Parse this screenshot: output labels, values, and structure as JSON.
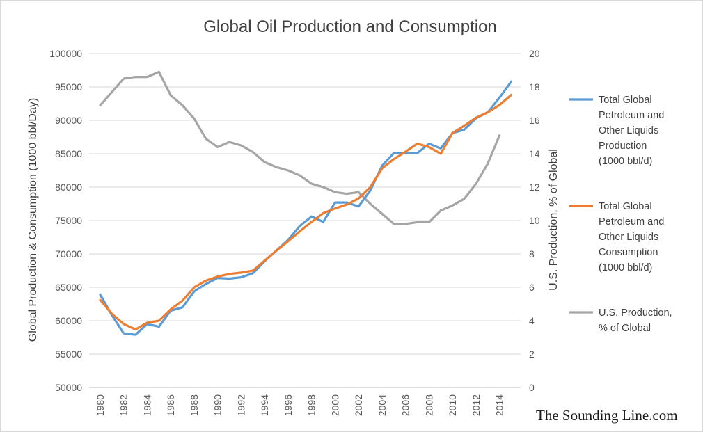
{
  "chart_data": {
    "type": "line",
    "title": "Global Oil Production and Consumption",
    "ylabel": "Global Production & Consumption (1000 bbl/Day)",
    "y2label": "U.S. Production, % of Global",
    "ylim": [
      50000,
      100000
    ],
    "y2lim": [
      0,
      20
    ],
    "yticks": [
      50000,
      55000,
      60000,
      65000,
      70000,
      75000,
      80000,
      85000,
      90000,
      95000,
      100000
    ],
    "y2ticks": [
      0,
      2,
      4,
      6,
      8,
      10,
      12,
      14,
      16,
      18,
      20
    ],
    "x": [
      1980,
      1981,
      1982,
      1983,
      1984,
      1985,
      1986,
      1987,
      1988,
      1989,
      1990,
      1991,
      1992,
      1993,
      1994,
      1995,
      1996,
      1997,
      1998,
      1999,
      2000,
      2001,
      2002,
      2003,
      2004,
      2005,
      2006,
      2007,
      2008,
      2009,
      2010,
      2011,
      2012,
      2013,
      2014,
      2015
    ],
    "xticks": [
      1980,
      1982,
      1984,
      1986,
      1988,
      1990,
      1992,
      1994,
      1996,
      1998,
      2000,
      2002,
      2004,
      2006,
      2008,
      2010,
      2012,
      2014
    ],
    "grid": true,
    "legend_position": "right",
    "series": [
      {
        "name": "Total Global Petroleum and Other Liquids Production (1000 bbl/d)",
        "legend_lines": [
          "Total Global",
          "Petroleum and",
          "Other Liquids",
          "Production",
          "(1000 bbl/d)"
        ],
        "axis": "left",
        "color": "#5b9bd5",
        "values": [
          63900,
          60800,
          58100,
          57900,
          59500,
          59100,
          61500,
          62000,
          64400,
          65500,
          66400,
          66300,
          66500,
          67100,
          68900,
          70500,
          72100,
          74200,
          75600,
          74800,
          77700,
          77700,
          77100,
          79500,
          83200,
          85100,
          85100,
          85100,
          86500,
          85800,
          88100,
          88600,
          90300,
          91200,
          93400,
          95800
        ]
      },
      {
        "name": "Total Global Petroleum and Other Liquids Consumption (1000 bbl/d)",
        "legend_lines": [
          "Total Global",
          "Petroleum and",
          "Other Liquids",
          "Consumption",
          "(1000 bbl/d)"
        ],
        "axis": "left",
        "color": "#ed7d31",
        "values": [
          63100,
          61000,
          59500,
          58700,
          59700,
          60000,
          61700,
          63000,
          65000,
          66000,
          66600,
          67000,
          67200,
          67500,
          69000,
          70500,
          71900,
          73400,
          74800,
          76100,
          76800,
          77400,
          78300,
          80000,
          82800,
          84200,
          85300,
          86500,
          86000,
          85000,
          88100,
          89200,
          90400,
          91200,
          92300,
          93800
        ]
      },
      {
        "name": "U.S. Production, % of Global",
        "legend_lines": [
          "U.S. Production,",
          "% of Global"
        ],
        "axis": "right",
        "color": "#a5a5a5",
        "values": [
          16.9,
          17.7,
          18.5,
          18.6,
          18.6,
          18.9,
          17.5,
          16.9,
          16.1,
          14.9,
          14.4,
          14.7,
          14.5,
          14.1,
          13.5,
          13.2,
          13.0,
          12.7,
          12.2,
          12.0,
          11.7,
          11.6,
          11.7,
          11.0,
          10.4,
          9.8,
          9.8,
          9.9,
          9.9,
          10.6,
          10.9,
          11.3,
          12.2,
          13.4,
          15.1,
          null
        ]
      }
    ]
  },
  "watermark": "The Sounding Line.com"
}
